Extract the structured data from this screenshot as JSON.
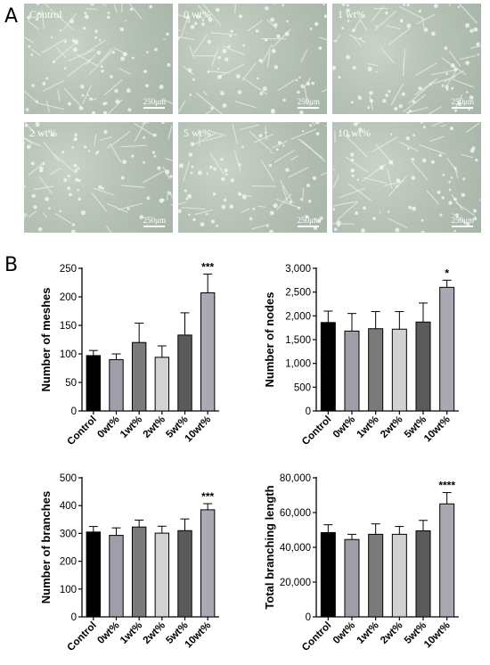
{
  "panel_a_letter": "A",
  "panel_b_letter": "B",
  "scale_bar_label": "250μm",
  "images": [
    {
      "label": "Control"
    },
    {
      "label": "0 wt%"
    },
    {
      "label": "1 wt%"
    },
    {
      "label": "2 wt%"
    },
    {
      "label": "5 wt%"
    },
    {
      "label": "10 wt%"
    }
  ],
  "colors": {
    "Control": "#000000",
    "0wt%": "#9e9ea8",
    "1wt%": "#7a7a7a",
    "2wt%": "#d2d2d2",
    "5wt%": "#5a5a5a",
    "10wt%": "#a9a9b4"
  },
  "chart_data": [
    {
      "type": "bar",
      "ylabel": "Number of meshes",
      "categories": [
        "Control",
        "0wt%",
        "1wt%",
        "2wt%",
        "5wt%",
        "10wt%"
      ],
      "values": [
        97,
        90,
        120,
        94,
        133,
        207
      ],
      "errors": [
        9,
        10,
        34,
        20,
        39,
        33
      ],
      "significance": [
        "",
        "",
        "",
        "",
        "",
        "***"
      ],
      "ylim": [
        0,
        250
      ],
      "yticks": [
        "0",
        "50",
        "100",
        "150",
        "200",
        "250"
      ]
    },
    {
      "type": "bar",
      "ylabel": "Number of nodes",
      "categories": [
        "Control",
        "0wt%",
        "1wt%",
        "2wt%",
        "5wt%",
        "10wt%"
      ],
      "values": [
        1860,
        1680,
        1730,
        1720,
        1870,
        2600
      ],
      "errors": [
        240,
        370,
        360,
        370,
        400,
        150
      ],
      "significance": [
        "",
        "",
        "",
        "",
        "",
        "*"
      ],
      "ylim": [
        0,
        3000
      ],
      "yticks": [
        "0",
        "500",
        "1,000",
        "1,500",
        "2,000",
        "2,500",
        "3,000"
      ]
    },
    {
      "type": "bar",
      "ylabel": "Number of branches",
      "categories": [
        "Control",
        "0wt%",
        "1wt%",
        "2wt%",
        "5wt%",
        "10wt%"
      ],
      "values": [
        305,
        293,
        323,
        301,
        310,
        385
      ],
      "errors": [
        20,
        27,
        25,
        25,
        42,
        22
      ],
      "significance": [
        "",
        "",
        "",
        "",
        "",
        "***"
      ],
      "ylim": [
        0,
        500
      ],
      "yticks": [
        "0",
        "100",
        "200",
        "300",
        "400",
        "500"
      ]
    },
    {
      "type": "bar",
      "ylabel": "Total branching length",
      "categories": [
        "Control",
        "0wt%",
        "1wt%",
        "2wt%",
        "5wt%",
        "10wt%"
      ],
      "values": [
        48500,
        44500,
        47500,
        47500,
        49500,
        65000
      ],
      "errors": [
        4500,
        3000,
        6000,
        4500,
        6000,
        6500
      ],
      "significance": [
        "",
        "",
        "",
        "",
        "",
        "****"
      ],
      "ylim": [
        0,
        80000
      ],
      "yticks": [
        "0",
        "20,000",
        "40,000",
        "60,000",
        "80,000"
      ]
    }
  ]
}
